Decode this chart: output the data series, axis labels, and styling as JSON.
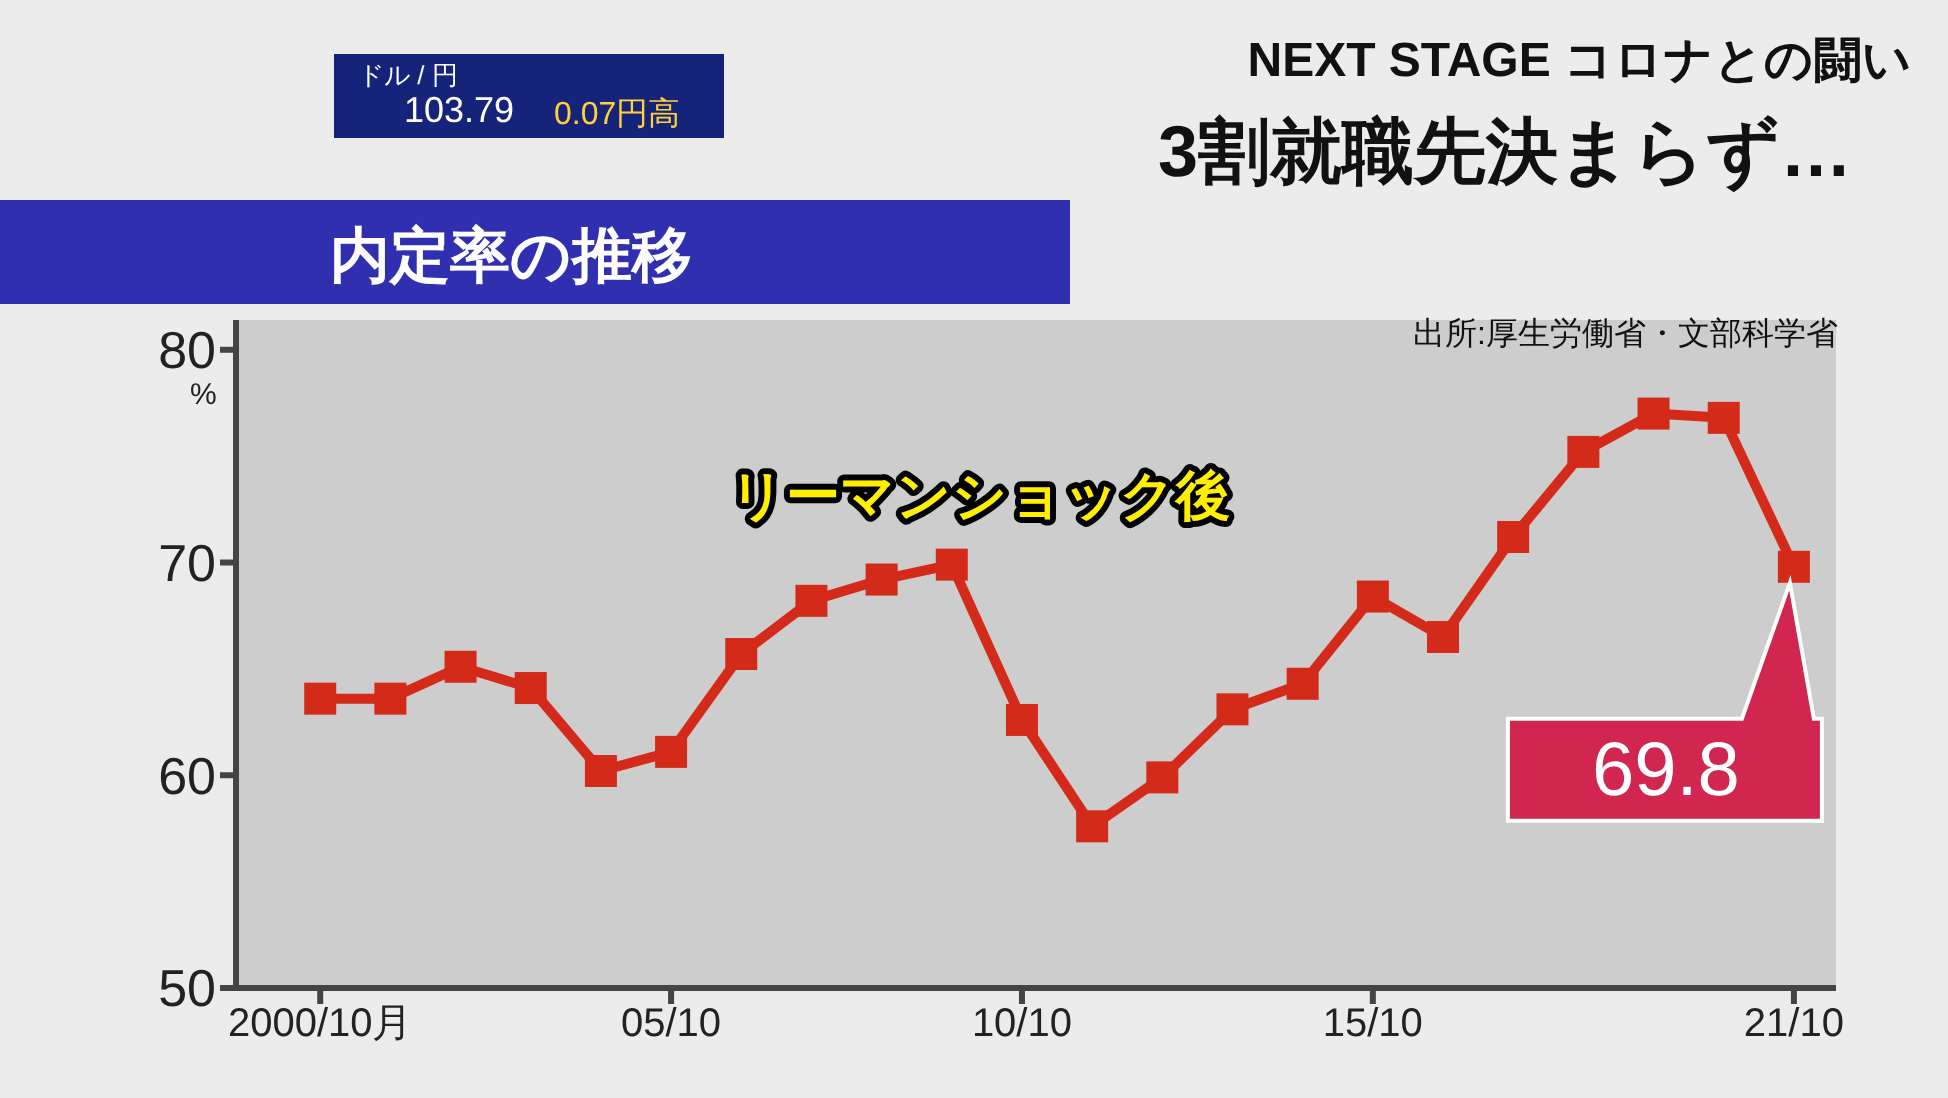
{
  "chart_data": {
    "type": "line",
    "title": "内定率の推移",
    "subtitle": "3割就職先決まらず…",
    "ylabel": "%",
    "annotations": [
      "リーマンショック後",
      "出所:厚生労働省・文部科学省",
      "NEXT STAGE コロナとの闘い",
      "ドル / 円",
      "103.79",
      "0.07円高"
    ],
    "categories": [
      "2000/10月",
      null,
      null,
      null,
      null,
      "05/10",
      null,
      null,
      null,
      null,
      "10/10",
      null,
      null,
      null,
      null,
      "15/10",
      null,
      null,
      null,
      null,
      null,
      "21/10"
    ],
    "series": [
      {
        "color": "#d42a1a",
        "values": [
          63.6,
          63.6,
          65.1,
          64.1,
          60.2,
          61.1,
          65.7,
          68.2,
          69.2,
          69.9,
          62.6,
          57.6,
          59.9,
          63.1,
          64.3,
          68.4,
          66.5,
          71.2,
          75.2,
          77.0,
          76.8,
          69.8
        ],
        "value_labels": [
          null,
          null,
          null,
          null,
          null,
          null,
          null,
          null,
          null,
          null,
          null,
          null,
          null,
          null,
          null,
          null,
          null,
          null,
          null,
          null,
          null,
          "69.8"
        ]
      }
    ],
    "ylim": [
      50,
      81.4
    ],
    "yticks": [
      50,
      60,
      70,
      80
    ],
    "grid": false,
    "legend": false,
    "marker": "square",
    "line_style": "solid"
  }
}
